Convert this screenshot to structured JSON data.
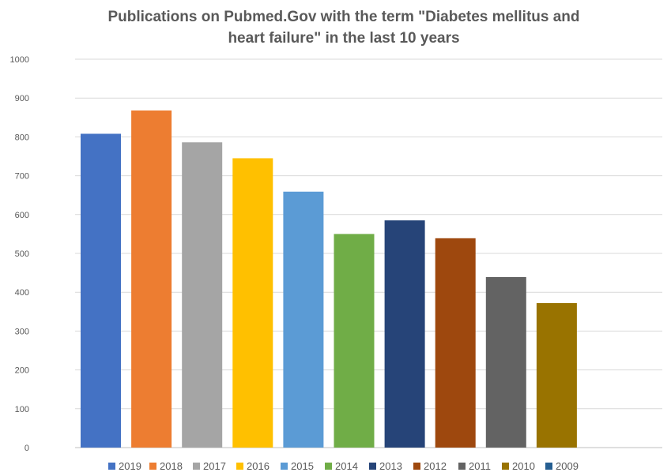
{
  "chart_data": {
    "type": "bar",
    "title_line1": "Publications on Pubmed.Gov with the term \"Diabetes mellitus and",
    "title_line2": "heart failure\" in the last 10 years",
    "xlabel": "",
    "ylabel": "",
    "ylim": [
      0,
      1000
    ],
    "yticks": [
      "0",
      "100",
      "200",
      "300",
      "400",
      "500",
      "600",
      "700",
      "800",
      "900",
      "1000"
    ],
    "grid": true,
    "legend_position": "bottom",
    "series": [
      {
        "name": "2019",
        "value": 808,
        "color": "#4472C4"
      },
      {
        "name": "2018",
        "value": 868,
        "color": "#ED7D31"
      },
      {
        "name": "2017",
        "value": 786,
        "color": "#A5A5A5"
      },
      {
        "name": "2016",
        "value": 745,
        "color": "#FFC000"
      },
      {
        "name": "2015",
        "value": 659,
        "color": "#5B9BD5"
      },
      {
        "name": "2014",
        "value": 550,
        "color": "#70AD47"
      },
      {
        "name": "2013",
        "value": 585,
        "color": "#264478"
      },
      {
        "name": "2012",
        "value": 539,
        "color": "#9E480E"
      },
      {
        "name": "2011",
        "value": 439,
        "color": "#636363"
      },
      {
        "name": "2010",
        "value": 372,
        "color": "#997300"
      },
      {
        "name": "2009",
        "value": null,
        "color": "#255E91"
      }
    ]
  }
}
